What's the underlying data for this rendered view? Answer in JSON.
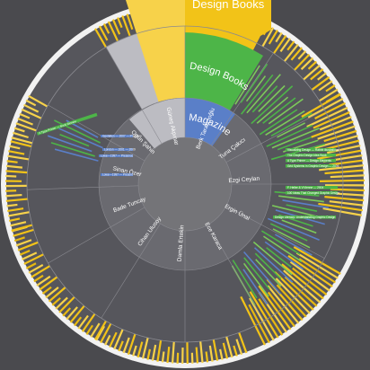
{
  "colors": {
    "background": "#4a4a4e",
    "dark_ring": "#56565c",
    "inner_ring": "#6a6a70",
    "center": "#747478",
    "books": "#f2c318",
    "books_light": "#f7d24a",
    "design_books": "#4db548",
    "design_light": "#7ccb5a",
    "magazines": "#5a7fc8",
    "grey_wedge": "#bcbcc2",
    "white_ring": "#f2f2f2"
  },
  "categories": {
    "books": "Design Books",
    "design_books": "Design Books",
    "magazines": "Magazines"
  },
  "people": [
    "Berk Tarakçıoğlu",
    "Tuna Çakıcı",
    "Ezgi Ceylan",
    "Ergin Ünal",
    "Ece Karaca",
    "Damla Ertekin",
    "Cihan Ulusoy",
    "Bade Tuncay",
    "Sinan Özer",
    "Ogün Şahin",
    "Güneş Akpınar"
  ],
  "items": {
    "left_1": "Gestalten — 2007 — Precision",
    "left_2": "London — 2001 — 2009",
    "left_3": "Lowe—1997 — Presence",
    "left_4": "Lowe—1997 — Present",
    "right_1": "Visualizing Design — Rabbit Illustrations",
    "right_2": "The Graphic Design Idea Book",
    "right_3": "A Type Primer — Design Elements",
    "right_4": "Grid Systems in Graphic Design — 2006",
    "right_5": "F. Heller & V.Vienne — 2004",
    "right_6": "100 Ideas That Changed Graphic Design",
    "upper_left": "A Type Primer — Book Review",
    "right_mid": "Design Literacy: Understanding Graphic Design"
  }
}
